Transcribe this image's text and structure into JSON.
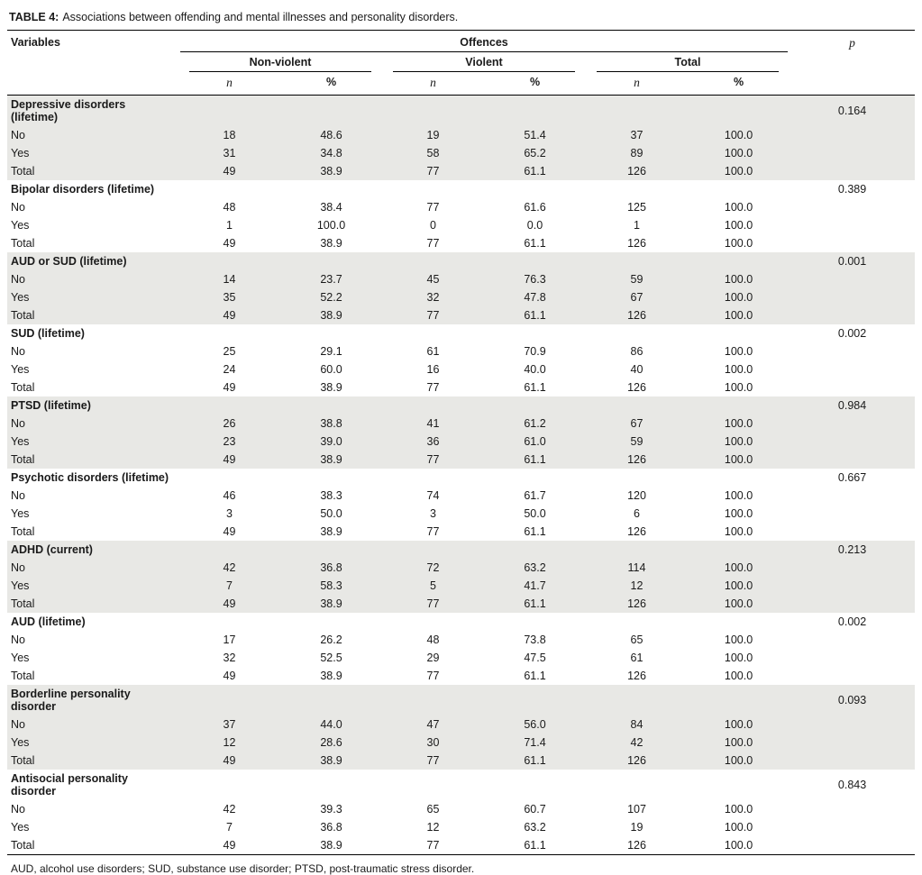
{
  "table": {
    "caption_label": "TABLE 4:",
    "caption_text": "Associations between offending and mental illnesses and personality disorders.",
    "col_headers": {
      "variables": "Variables",
      "offences": "Offences",
      "p": "p",
      "groups": [
        "Non-violent",
        "Violent",
        "Total"
      ],
      "sub": [
        "n",
        "%"
      ]
    },
    "groups": [
      {
        "name": "Depressive disorders (lifetime)",
        "p": "0.164",
        "rows": [
          {
            "label": "No",
            "values": [
              "18",
              "48.6",
              "19",
              "51.4",
              "37",
              "100.0"
            ]
          },
          {
            "label": "Yes",
            "values": [
              "31",
              "34.8",
              "58",
              "65.2",
              "89",
              "100.0"
            ]
          },
          {
            "label": "Total",
            "values": [
              "49",
              "38.9",
              "77",
              "61.1",
              "126",
              "100.0"
            ]
          }
        ]
      },
      {
        "name": "Bipolar disorders (lifetime)",
        "p": "0.389",
        "rows": [
          {
            "label": "No",
            "values": [
              "48",
              "38.4",
              "77",
              "61.6",
              "125",
              "100.0"
            ]
          },
          {
            "label": "Yes",
            "values": [
              "1",
              "100.0",
              "0",
              "0.0",
              "1",
              "100.0"
            ]
          },
          {
            "label": "Total",
            "values": [
              "49",
              "38.9",
              "77",
              "61.1",
              "126",
              "100.0"
            ]
          }
        ]
      },
      {
        "name": "AUD or SUD (lifetime)",
        "p": "0.001",
        "rows": [
          {
            "label": "No",
            "values": [
              "14",
              "23.7",
              "45",
              "76.3",
              "59",
              "100.0"
            ]
          },
          {
            "label": "Yes",
            "values": [
              "35",
              "52.2",
              "32",
              "47.8",
              "67",
              "100.0"
            ]
          },
          {
            "label": "Total",
            "values": [
              "49",
              "38.9",
              "77",
              "61.1",
              "126",
              "100.0"
            ]
          }
        ]
      },
      {
        "name": "SUD (lifetime)",
        "p": "0.002",
        "rows": [
          {
            "label": "No",
            "values": [
              "25",
              "29.1",
              "61",
              "70.9",
              "86",
              "100.0"
            ]
          },
          {
            "label": "Yes",
            "values": [
              "24",
              "60.0",
              "16",
              "40.0",
              "40",
              "100.0"
            ]
          },
          {
            "label": "Total",
            "values": [
              "49",
              "38.9",
              "77",
              "61.1",
              "126",
              "100.0"
            ]
          }
        ]
      },
      {
        "name": "PTSD (lifetime)",
        "p": "0.984",
        "rows": [
          {
            "label": "No",
            "values": [
              "26",
              "38.8",
              "41",
              "61.2",
              "67",
              "100.0"
            ]
          },
          {
            "label": "Yes",
            "values": [
              "23",
              "39.0",
              "36",
              "61.0",
              "59",
              "100.0"
            ]
          },
          {
            "label": "Total",
            "values": [
              "49",
              "38.9",
              "77",
              "61.1",
              "126",
              "100.0"
            ]
          }
        ]
      },
      {
        "name": "Psychotic disorders (lifetime)",
        "p": "0.667",
        "rows": [
          {
            "label": "No",
            "values": [
              "46",
              "38.3",
              "74",
              "61.7",
              "120",
              "100.0"
            ]
          },
          {
            "label": "Yes",
            "values": [
              "3",
              "50.0",
              "3",
              "50.0",
              "6",
              "100.0"
            ]
          },
          {
            "label": "Total",
            "values": [
              "49",
              "38.9",
              "77",
              "61.1",
              "126",
              "100.0"
            ]
          }
        ]
      },
      {
        "name": "ADHD (current)",
        "p": "0.213",
        "rows": [
          {
            "label": "No",
            "values": [
              "42",
              "36.8",
              "72",
              "63.2",
              "114",
              "100.0"
            ]
          },
          {
            "label": "Yes",
            "values": [
              "7",
              "58.3",
              "5",
              "41.7",
              "12",
              "100.0"
            ]
          },
          {
            "label": "Total",
            "values": [
              "49",
              "38.9",
              "77",
              "61.1",
              "126",
              "100.0"
            ]
          }
        ]
      },
      {
        "name": "AUD (lifetime)",
        "p": "0.002",
        "rows": [
          {
            "label": "No",
            "values": [
              "17",
              "26.2",
              "48",
              "73.8",
              "65",
              "100.0"
            ]
          },
          {
            "label": "Yes",
            "values": [
              "32",
              "52.5",
              "29",
              "47.5",
              "61",
              "100.0"
            ]
          },
          {
            "label": "Total",
            "values": [
              "49",
              "38.9",
              "77",
              "61.1",
              "126",
              "100.0"
            ]
          }
        ]
      },
      {
        "name": "Borderline personality disorder",
        "p": "0.093",
        "rows": [
          {
            "label": "No",
            "values": [
              "37",
              "44.0",
              "47",
              "56.0",
              "84",
              "100.0"
            ]
          },
          {
            "label": "Yes",
            "values": [
              "12",
              "28.6",
              "30",
              "71.4",
              "42",
              "100.0"
            ]
          },
          {
            "label": "Total",
            "values": [
              "49",
              "38.9",
              "77",
              "61.1",
              "126",
              "100.0"
            ]
          }
        ]
      },
      {
        "name": "Antisocial personality disorder",
        "p": "0.843",
        "rows": [
          {
            "label": "No",
            "values": [
              "42",
              "39.3",
              "65",
              "60.7",
              "107",
              "100.0"
            ]
          },
          {
            "label": "Yes",
            "values": [
              "7",
              "36.8",
              "12",
              "63.2",
              "19",
              "100.0"
            ]
          },
          {
            "label": "Total",
            "values": [
              "49",
              "38.9",
              "77",
              "61.1",
              "126",
              "100.0"
            ]
          }
        ]
      }
    ],
    "footnote": "AUD, alcohol use disorders; SUD, substance use disorder; PTSD, post-traumatic stress disorder."
  }
}
